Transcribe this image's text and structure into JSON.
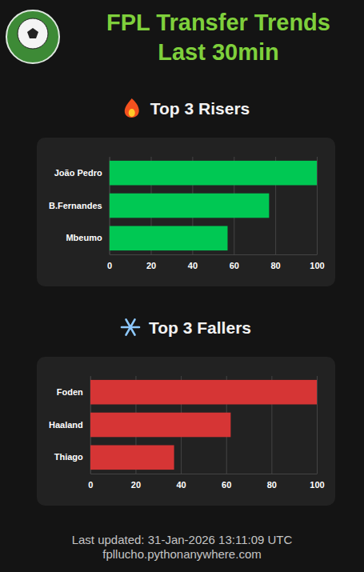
{
  "header": {
    "title_lines": [
      "FPL Transfer Trends",
      "Last 30min"
    ]
  },
  "chart_data": [
    {
      "type": "bar",
      "orientation": "horizontal",
      "title": "Top 3 Risers",
      "categories": [
        "João Pedro",
        "B.Fernandes",
        "Mbeumo"
      ],
      "values": [
        100,
        77,
        57
      ],
      "color": "#00c853",
      "xlim": [
        0,
        100
      ],
      "xticks": [
        0,
        20,
        40,
        60,
        80,
        100
      ],
      "grid": true
    },
    {
      "type": "bar",
      "orientation": "horizontal",
      "title": "Top 3 Fallers",
      "categories": [
        "Foden",
        "Haaland",
        "Thiago"
      ],
      "values": [
        100,
        62,
        37
      ],
      "color": "#d63535",
      "xlim": [
        0,
        100
      ],
      "xticks": [
        0,
        20,
        40,
        60,
        80,
        100
      ],
      "grid": true
    }
  ],
  "footer": {
    "updated": "Last updated: 31-Jan-2026 13:11:09 UTC",
    "site": "fpllucho.pythonanywhere.com"
  }
}
